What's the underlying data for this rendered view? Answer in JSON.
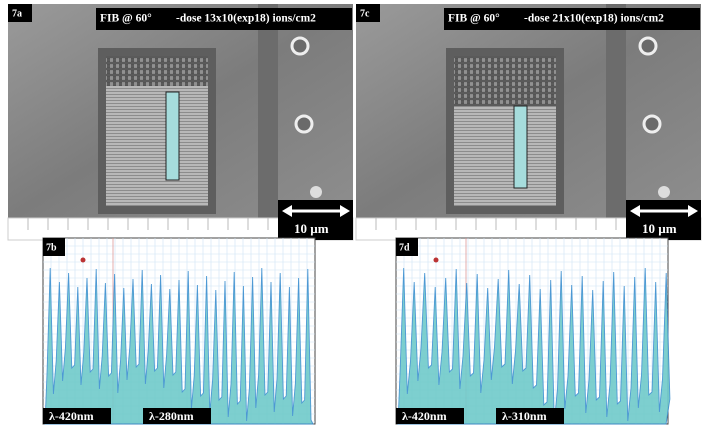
{
  "panels": [
    {
      "label": "7a",
      "header": "FIB @ 60°",
      "dose": "-dose 13x10(exp18) ions/cm2",
      "scale": "10  µm"
    },
    {
      "label": "7c",
      "header": "FIB @ 60°",
      "dose": "-dose 21x10(exp18) ions/cm2",
      "scale": "10  µm"
    }
  ],
  "profiles": [
    {
      "label": "7b",
      "wavelengths": [
        "λ-420nm",
        "λ-280nm"
      ]
    },
    {
      "label": "7d",
      "wavelengths": [
        "λ-420nm",
        "λ-310nm"
      ]
    }
  ]
}
